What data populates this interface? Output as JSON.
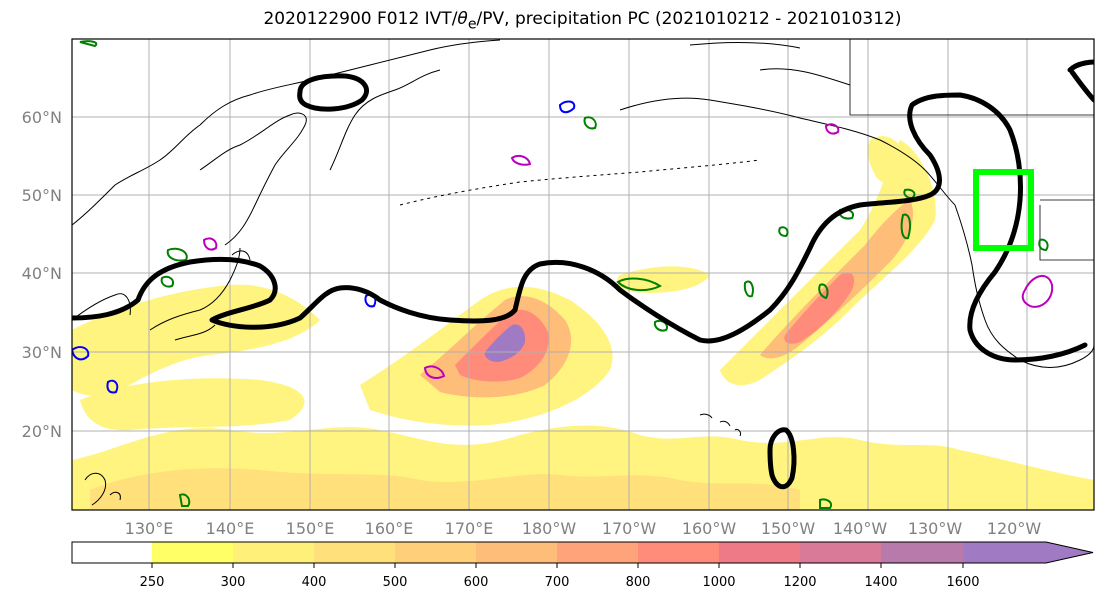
{
  "title": {
    "prefix": "2020122900 F012 IVT/",
    "theta": "θ",
    "sub": "e",
    "suffix": "/PV, precipitation PC (2021010212 - 2021010312)"
  },
  "map": {
    "lat_labels": [
      "60°N",
      "50°N",
      "40°N",
      "30°N",
      "20°N"
    ],
    "lon_labels": [
      "130°E",
      "140°E",
      "150°E",
      "160°E",
      "170°E",
      "180°W",
      "170°W",
      "160°W",
      "150°W",
      "140°W",
      "130°W",
      "120°W"
    ],
    "colors": {
      "theta_e_contour": "#000000",
      "precip_contour": "#008000",
      "pv_contour_blue": "#0000ff",
      "pv_contour_magenta": "#bb00bb",
      "highlight_box": "#00ff00",
      "coastline": "#000000",
      "grid": "#b0b0b0"
    }
  },
  "colorbar": {
    "levels": [
      "250",
      "300",
      "400",
      "500",
      "600",
      "700",
      "800",
      "1000",
      "1200",
      "1400",
      "1600"
    ],
    "colors": [
      "#ffffff",
      "#ffff66",
      "#fff07a",
      "#ffe07a",
      "#ffcf7a",
      "#ffbd7a",
      "#ffa47a",
      "#ff8c7a",
      "#ee7a88",
      "#d97a99",
      "#b87aaa",
      "#a07ac2"
    ]
  }
}
